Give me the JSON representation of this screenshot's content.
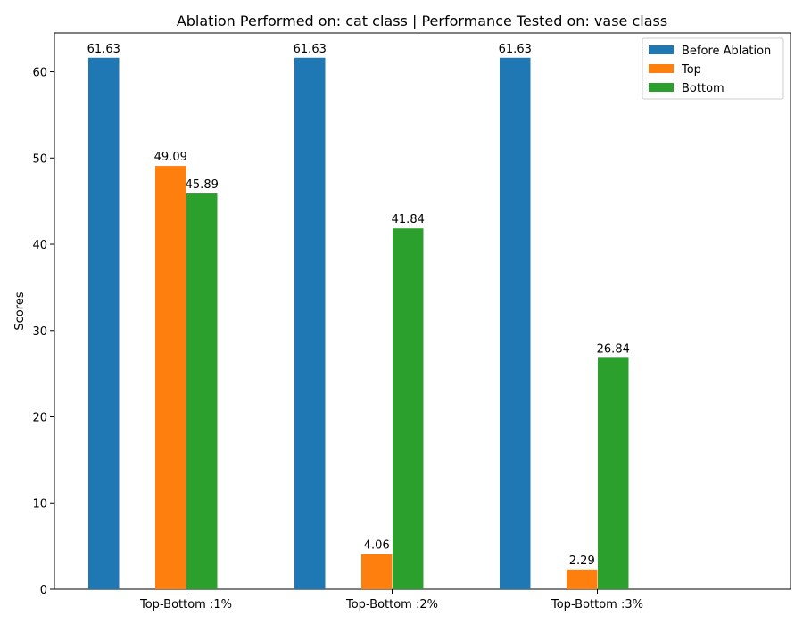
{
  "chart_data": {
    "type": "bar",
    "title": "Ablation Performed on: cat class | Performance Tested on: vase class",
    "xlabel": "",
    "ylabel": "Scores",
    "categories": [
      "Top-Bottom :1%",
      "Top-Bottom :2%",
      "Top-Bottom :3%"
    ],
    "series": [
      {
        "name": "Before Ablation",
        "color": "#1f77b4",
        "values": [
          61.63,
          61.63,
          61.63
        ],
        "labels": [
          "61.63",
          "61.63",
          "61.63"
        ]
      },
      {
        "name": "Top",
        "color": "#ff7f0e",
        "values": [
          49.09,
          4.06,
          2.29
        ],
        "labels": [
          "49.09",
          "4.06",
          "2.29"
        ]
      },
      {
        "name": "Bottom",
        "color": "#2ca02c",
        "values": [
          45.89,
          41.84,
          26.84
        ],
        "labels": [
          "45.89",
          "41.84",
          "26.84"
        ]
      }
    ],
    "ylim": [
      0,
      64.5
    ],
    "yticks": [
      0,
      10,
      20,
      30,
      40,
      50,
      60
    ],
    "ytick_labels": [
      "0",
      "10",
      "20",
      "30",
      "40",
      "50",
      "60"
    ],
    "grid": false,
    "legend_position": "top-right"
  }
}
